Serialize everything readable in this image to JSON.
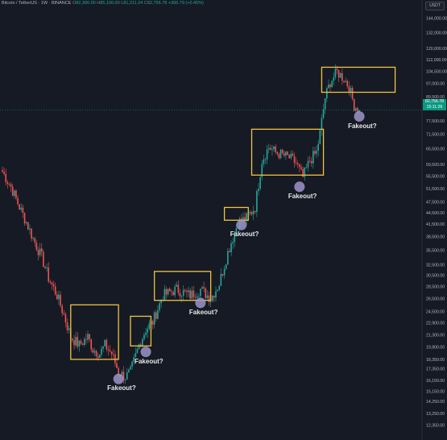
{
  "header": {
    "symbol": "Bitcoin / TetherUS · 1W · BINANCE",
    "open_label": "O",
    "open_value": "82,390.00",
    "high_label": "H",
    "high_value": "85,100.00",
    "low_label": "L",
    "low_value": "81,211.24",
    "close_label": "C",
    "close_value": "82,756.78",
    "change": "+366.79 (+0.45%)"
  },
  "currency_button": "USDT",
  "last_price": {
    "price": "82,756.78",
    "countdown": "15:11:26"
  },
  "colors": {
    "background": "#161a25",
    "up": "#26a69a",
    "down": "#ef5350",
    "box": "#f0c340",
    "marker": "#9e95c9",
    "axis_text": "#b2b5be"
  },
  "chart_data": {
    "type": "candlestick",
    "y_scale": "log",
    "ylim": [
      11500,
      150000
    ],
    "y_tick_labels": [
      "144,000.00",
      "132,000.00",
      "120,000.00",
      "112,000.00",
      "104,500.00",
      "97,000.00",
      "89,500.00",
      "77,500.00",
      "71,500.00",
      "65,500.00",
      "59,500.00",
      "55,500.00",
      "51,500.00",
      "47,500.00",
      "44,500.00",
      "41,500.00",
      "38,500.00",
      "35,500.00",
      "32,500.00",
      "30,500.00",
      "28,500.00",
      "26,500.00",
      "24,500.00",
      "22,900.00",
      "21,300.00",
      "19,800.00",
      "18,350.00",
      "17,350.00",
      "16,150.00",
      "15,150.00",
      "14,250.00",
      "13,250.00",
      "12,350.00"
    ],
    "price_path": [
      [
        0,
        57000
      ],
      [
        5,
        52000
      ],
      [
        10,
        46000
      ],
      [
        14,
        42000
      ],
      [
        18,
        38000
      ],
      [
        23,
        34000
      ],
      [
        27,
        30000
      ],
      [
        32,
        27000
      ],
      [
        36,
        24000
      ],
      [
        40,
        21000
      ],
      [
        45,
        20000
      ],
      [
        50,
        21000
      ],
      [
        53,
        19500
      ],
      [
        57,
        19000
      ],
      [
        60,
        20000
      ],
      [
        64,
        19000
      ],
      [
        68,
        17000
      ],
      [
        72,
        16500
      ],
      [
        75,
        17000
      ],
      [
        80,
        20000
      ],
      [
        84,
        22000
      ],
      [
        88,
        23000
      ],
      [
        94,
        27000
      ],
      [
        102,
        28000
      ],
      [
        110,
        27000
      ],
      [
        116,
        28000
      ],
      [
        122,
        26500
      ],
      [
        127,
        29000
      ],
      [
        132,
        35000
      ],
      [
        138,
        42000
      ],
      [
        143,
        43000
      ],
      [
        148,
        46000
      ],
      [
        152,
        61000
      ],
      [
        156,
        66000
      ],
      [
        160,
        64000
      ],
      [
        164,
        63000
      ],
      [
        168,
        62000
      ],
      [
        172,
        60000
      ],
      [
        176,
        55000
      ],
      [
        180,
        61000
      ],
      [
        184,
        64000
      ],
      [
        186,
        72000
      ],
      [
        189,
        89000
      ],
      [
        192,
        98000
      ],
      [
        196,
        104000
      ],
      [
        200,
        100000
      ],
      [
        203,
        95000
      ],
      [
        206,
        85000
      ],
      [
        209,
        82700
      ]
    ],
    "zones": [
      {
        "x0": 40,
        "x1": 68,
        "y_low": 18350,
        "y_high": 25500,
        "label": "Fakeout?",
        "marker_x": 68,
        "marker_y": 16300
      },
      {
        "x0": 75,
        "x1": 87,
        "y_low": 19900,
        "y_high": 23800,
        "label": "Fakeout?",
        "marker_x": 84,
        "marker_y": 19200
      },
      {
        "x0": 89,
        "x1": 122,
        "y_low": 26200,
        "y_high": 31200,
        "label": "Fakeout?",
        "marker_x": 116,
        "marker_y": 25800
      },
      {
        "x0": 130,
        "x1": 144,
        "y_low": 42500,
        "y_high": 45900,
        "label": "Fakeout?",
        "marker_x": 140,
        "marker_y": 41300
      },
      {
        "x0": 146,
        "x1": 188,
        "y_low": 55800,
        "y_high": 73600,
        "label": "Fakeout?",
        "marker_x": 174,
        "marker_y": 52000
      },
      {
        "x0": 187,
        "x1": 230,
        "y_low": 92000,
        "y_high": 107000,
        "label": "Fakeout?",
        "marker_x": 209,
        "marker_y": 79500
      }
    ]
  }
}
